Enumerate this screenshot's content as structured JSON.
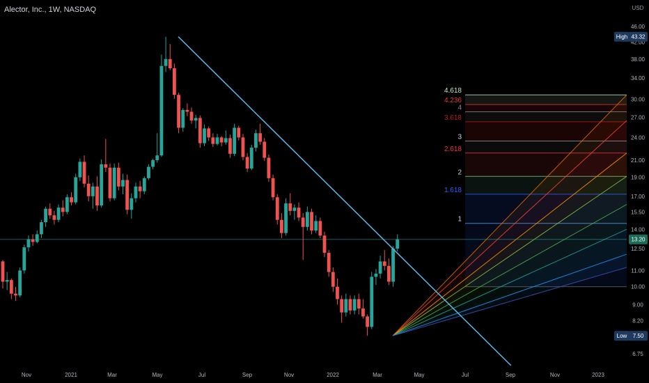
{
  "header": {
    "title": "Alector, Inc., 1W, NASDAQ"
  },
  "axis": {
    "currency": "USD",
    "price_ticks": [
      6.75,
      7.5,
      8.2,
      9.0,
      10.0,
      11.0,
      12.5,
      13.2,
      14.0,
      15.5,
      17.0,
      19.0,
      21.0,
      24.0,
      27.0,
      30.0,
      34.0,
      38.0,
      42.0,
      43.32,
      46.0
    ],
    "price_tick_labels": [
      "6.75",
      "7.50",
      "8.20",
      "9.00",
      "10.00",
      "11.00",
      "12.50",
      "13.20",
      "14.00",
      "15.50",
      "17.00",
      "19.00",
      "21.00",
      "24.00",
      "27.00",
      "30.00",
      "34.00",
      "38.00",
      "42.00",
      "43.32",
      "46.00"
    ],
    "time_labels": [
      "Nov",
      "2021",
      "Mar",
      "May",
      "Jul",
      "Sep",
      "Nov",
      "2022",
      "Mar",
      "May",
      "Jul",
      "Sep",
      "Nov",
      "2023"
    ],
    "scale": "log"
  },
  "badges": {
    "high_label": "High",
    "high_value": "43.32",
    "low_label": "Low",
    "low_value": "7.50",
    "last_value": "13.20"
  },
  "fib_levels": {
    "labels": [
      "4.618",
      "4.236",
      "4",
      "3.618",
      "3",
      "2.618",
      "2",
      "1.618",
      "1"
    ],
    "colors": [
      "#c8e6c9",
      "#e53935",
      "#888888",
      "#b71c1c",
      "#d1d4dc",
      "#f23645",
      "#d1d4dc",
      "#2962ff",
      "#d1d4dc"
    ]
  },
  "colors": {
    "up": "#26a69a",
    "down": "#ef5350",
    "trendline": "#5eb5e6",
    "last_price_line": "#26a69a",
    "fib_top": "#c8e6c9"
  },
  "chart_data": {
    "type": "candlestick",
    "title": "Alector, Inc., 1W, NASDAQ",
    "ylabel": "USD",
    "y_scale": "log",
    "ylim": [
      6.3,
      48
    ],
    "series": [
      {
        "name": "ALEC",
        "values": [
          [
            11.6,
            11.7,
            9.9,
            10.3
          ],
          [
            10.3,
            10.9,
            9.8,
            10.4
          ],
          [
            10.4,
            10.5,
            9.3,
            9.6
          ],
          [
            9.6,
            10.0,
            9.2,
            9.5
          ],
          [
            9.5,
            11.2,
            9.4,
            11.0
          ],
          [
            11.0,
            12.8,
            10.8,
            12.6
          ],
          [
            12.6,
            13.5,
            12.3,
            13.2
          ],
          [
            13.2,
            13.6,
            12.7,
            13.0
          ],
          [
            13.0,
            13.9,
            12.9,
            13.6
          ],
          [
            13.6,
            14.8,
            13.3,
            14.6
          ],
          [
            14.6,
            16.0,
            14.2,
            15.8
          ],
          [
            15.8,
            16.3,
            14.9,
            15.2
          ],
          [
            15.2,
            15.6,
            14.4,
            14.8
          ],
          [
            14.8,
            16.2,
            14.6,
            15.9
          ],
          [
            15.9,
            16.6,
            15.1,
            15.5
          ],
          [
            15.5,
            17.2,
            15.3,
            16.9
          ],
          [
            16.9,
            17.4,
            16.1,
            16.4
          ],
          [
            16.4,
            19.4,
            16.2,
            19.0
          ],
          [
            19.0,
            21.2,
            18.6,
            20.8
          ],
          [
            20.8,
            21.6,
            17.9,
            18.3
          ],
          [
            18.3,
            19.2,
            16.5,
            17.0
          ],
          [
            17.0,
            18.4,
            15.8,
            18.0
          ],
          [
            18.0,
            19.1,
            15.6,
            16.1
          ],
          [
            16.1,
            21.1,
            15.9,
            20.5
          ],
          [
            20.5,
            23.8,
            19.6,
            20.1
          ],
          [
            20.1,
            20.6,
            16.5,
            16.8
          ],
          [
            16.8,
            20.6,
            16.6,
            20.1
          ],
          [
            20.1,
            20.7,
            17.6,
            18.0
          ],
          [
            18.0,
            19.4,
            17.2,
            18.7
          ],
          [
            18.7,
            19.3,
            15.3,
            15.7
          ],
          [
            15.7,
            17.3,
            14.9,
            16.8
          ],
          [
            16.8,
            18.4,
            16.4,
            18.0
          ],
          [
            18.0,
            18.6,
            16.8,
            17.5
          ],
          [
            17.5,
            19.1,
            17.2,
            18.9
          ],
          [
            18.9,
            20.5,
            18.7,
            20.2
          ],
          [
            20.2,
            21.2,
            19.9,
            21.0
          ],
          [
            21.0,
            24.6,
            20.7,
            21.6
          ],
          [
            21.6,
            39.0,
            21.4,
            36.5
          ],
          [
            36.5,
            43.3,
            35.2,
            38.0
          ],
          [
            38.0,
            41.5,
            35.6,
            36.0
          ],
          [
            36.0,
            37.0,
            30.1,
            30.8
          ],
          [
            30.8,
            31.2,
            24.6,
            25.4
          ],
          [
            25.4,
            28.5,
            24.8,
            28.2
          ],
          [
            28.2,
            29.3,
            27.2,
            27.9
          ],
          [
            27.9,
            28.6,
            26.0,
            26.5
          ],
          [
            26.5,
            27.4,
            25.3,
            26.9
          ],
          [
            26.9,
            27.3,
            22.6,
            23.2
          ],
          [
            23.2,
            25.9,
            22.8,
            25.3
          ],
          [
            25.3,
            25.6,
            23.5,
            24.0
          ],
          [
            24.0,
            24.6,
            22.7,
            23.1
          ],
          [
            23.1,
            24.5,
            22.9,
            24.0
          ],
          [
            24.0,
            24.2,
            22.8,
            23.3
          ],
          [
            23.3,
            25.0,
            23.0,
            23.9
          ],
          [
            23.9,
            24.4,
            21.3,
            21.8
          ],
          [
            21.8,
            26.0,
            21.5,
            25.4
          ],
          [
            25.4,
            25.7,
            23.6,
            24.0
          ],
          [
            24.0,
            24.5,
            21.0,
            21.4
          ],
          [
            21.4,
            21.9,
            19.6,
            20.0
          ],
          [
            20.0,
            23.0,
            19.8,
            22.6
          ],
          [
            22.6,
            25.1,
            22.1,
            24.6
          ],
          [
            24.6,
            26.0,
            23.0,
            23.4
          ],
          [
            23.4,
            23.9,
            20.9,
            21.3
          ],
          [
            21.3,
            21.7,
            18.5,
            18.9
          ],
          [
            18.9,
            19.3,
            16.6,
            16.9
          ],
          [
            16.9,
            17.2,
            14.4,
            14.8
          ],
          [
            14.8,
            15.4,
            13.3,
            13.7
          ],
          [
            13.7,
            16.8,
            13.5,
            16.3
          ],
          [
            16.3,
            17.3,
            15.2,
            15.6
          ],
          [
            15.6,
            16.2,
            14.8,
            15.9
          ],
          [
            15.9,
            16.4,
            14.7,
            15.0
          ],
          [
            15.0,
            15.4,
            11.7,
            14.2
          ],
          [
            14.2,
            16.0,
            13.9,
            15.5
          ],
          [
            15.5,
            15.8,
            13.6,
            13.9
          ],
          [
            13.9,
            15.2,
            13.7,
            14.7
          ],
          [
            14.7,
            15.0,
            13.3,
            13.5
          ],
          [
            13.5,
            13.8,
            11.9,
            12.2
          ],
          [
            12.2,
            12.4,
            10.6,
            10.9
          ],
          [
            10.9,
            11.2,
            9.7,
            10.0
          ],
          [
            10.0,
            10.5,
            9.0,
            9.3
          ],
          [
            9.3,
            9.5,
            8.1,
            8.6
          ],
          [
            8.6,
            9.6,
            8.4,
            9.3
          ],
          [
            9.3,
            9.5,
            8.5,
            8.7
          ],
          [
            8.7,
            9.5,
            8.5,
            9.3
          ],
          [
            9.3,
            9.6,
            8.5,
            8.8
          ],
          [
            8.8,
            9.3,
            8.3,
            8.4
          ],
          [
            8.4,
            8.5,
            7.5,
            7.9
          ],
          [
            7.9,
            10.9,
            7.8,
            10.6
          ],
          [
            10.6,
            11.1,
            10.1,
            10.8
          ],
          [
            10.8,
            12.0,
            10.5,
            11.6
          ],
          [
            11.6,
            12.4,
            11.0,
            11.3
          ],
          [
            11.3,
            11.8,
            10.1,
            10.3
          ],
          [
            10.3,
            12.7,
            10.0,
            12.5
          ],
          [
            12.5,
            13.6,
            12.3,
            13.2
          ]
        ]
      }
    ],
    "trendline": {
      "from": {
        "x": "2021-06-25",
        "y": 43.32
      },
      "to": {
        "x": "2022-12-20",
        "y": 6.3
      }
    },
    "fib_extension": {
      "anchor": {
        "x": "2022-06-10",
        "y": 7.5
      },
      "levels": [
        {
          "ratio": "1",
          "price": 14.5
        },
        {
          "ratio": "1.618",
          "price": 17.2
        },
        {
          "ratio": "2",
          "price": 19.1
        },
        {
          "ratio": "2.618",
          "price": 21.9
        },
        {
          "ratio": "3",
          "price": 23.5
        },
        {
          "ratio": "3.618",
          "price": 26.3
        },
        {
          "ratio": "4",
          "price": 27.9
        },
        {
          "ratio": "4.236",
          "price": 29.1
        },
        {
          "ratio": "4.618",
          "price": 30.8
        }
      ],
      "base_price": 10.0
    }
  }
}
